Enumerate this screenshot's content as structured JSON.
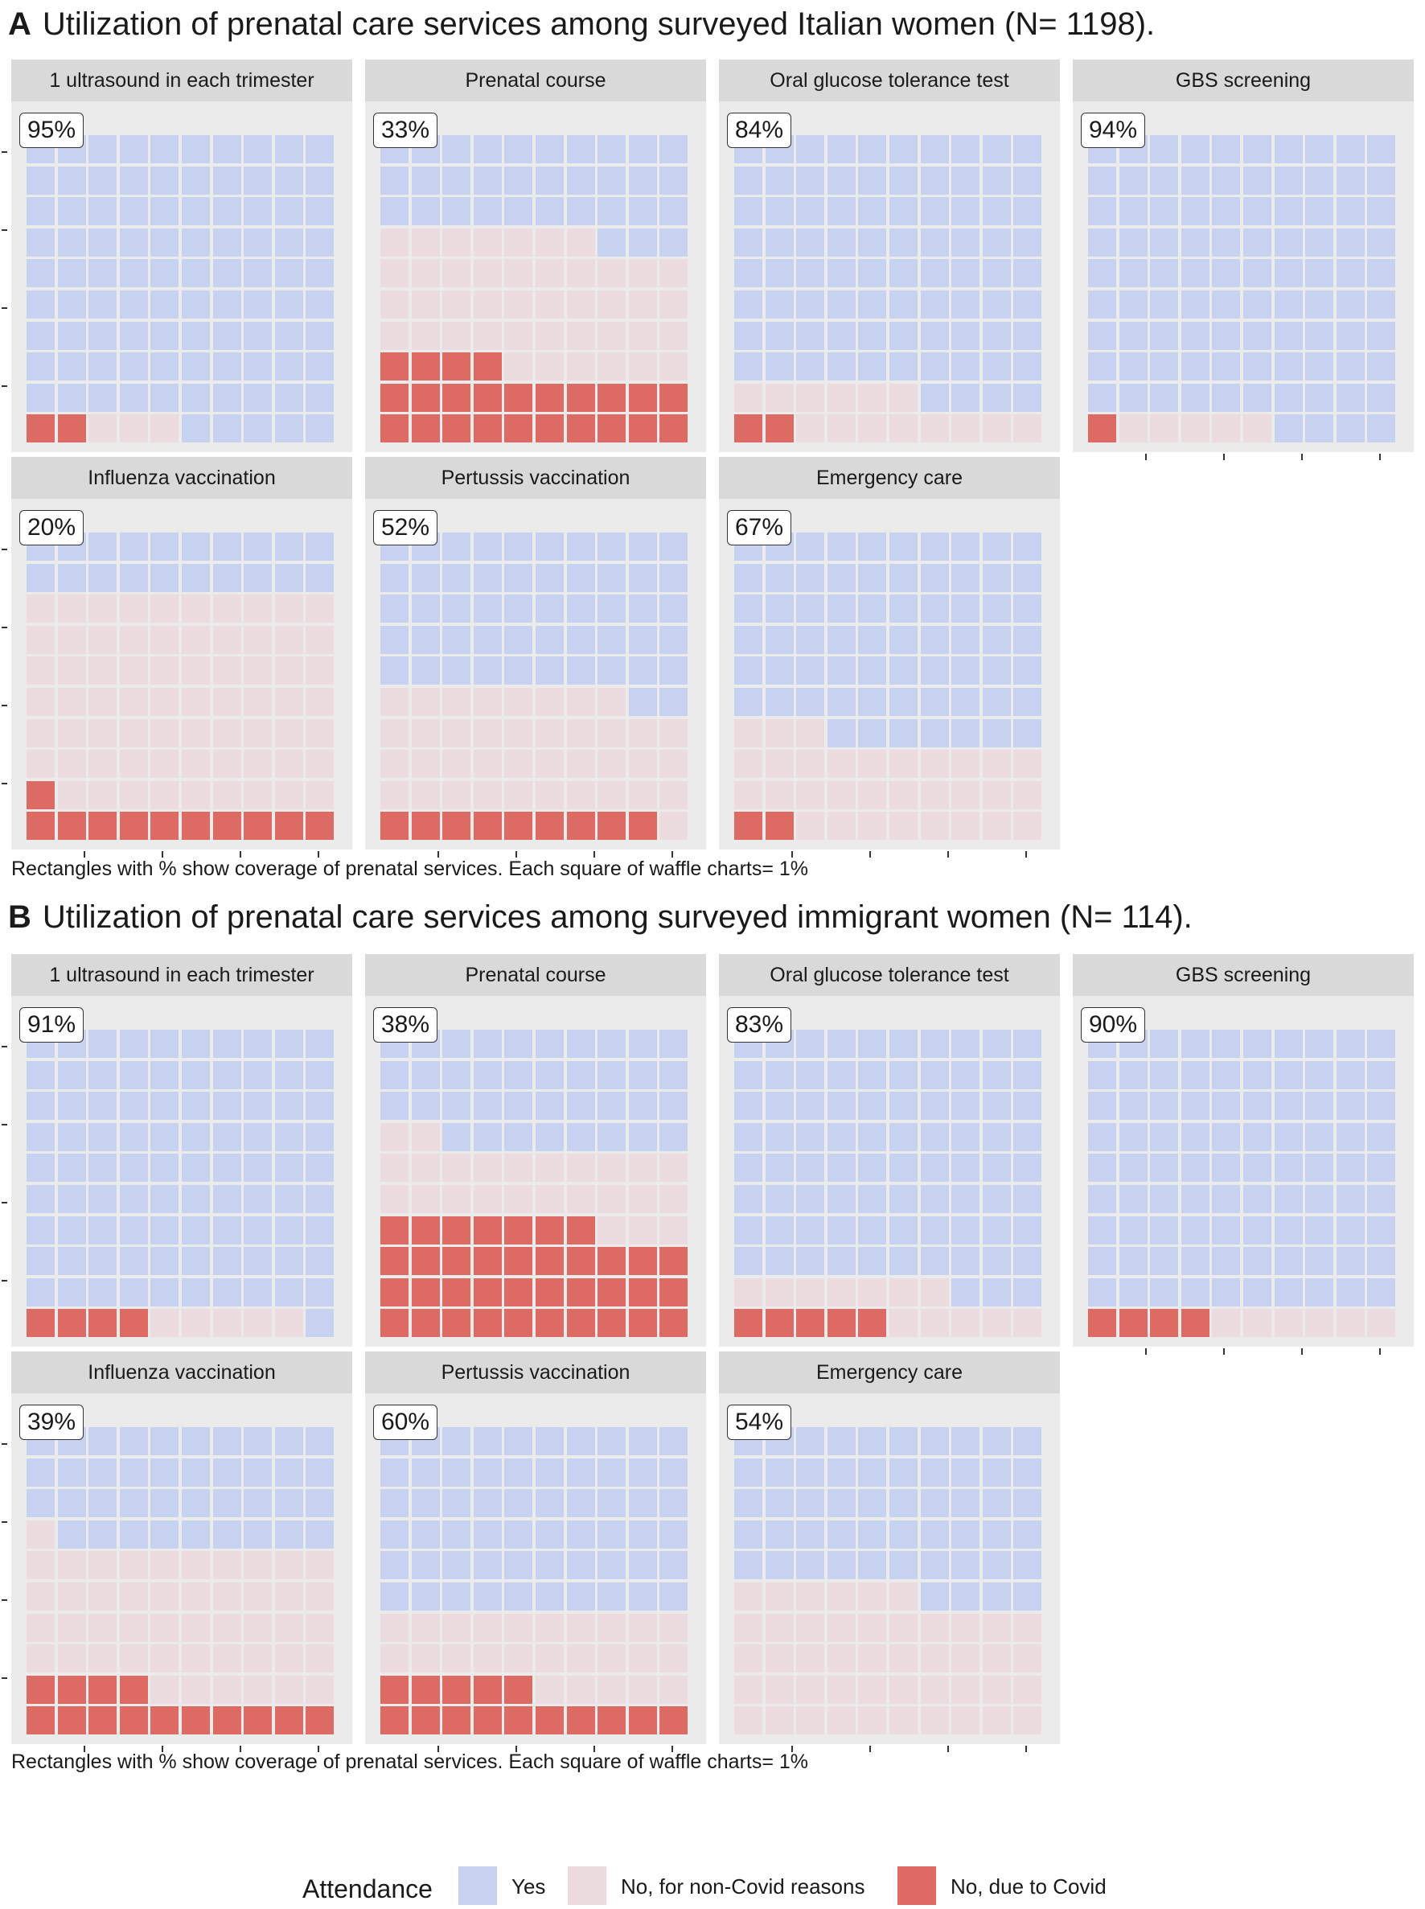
{
  "sections": [
    {
      "letter": "A",
      "title": "Utilization of prenatal care services among surveyed Italian women (N= 1198).",
      "caption": "Rectangles with % show coverage of prenatal services. Each square of waffle charts= 1%"
    },
    {
      "letter": "B",
      "title": "Utilization of prenatal care services among surveyed immigrant women (N= 114).",
      "caption": "Rectangles with % show coverage of prenatal services. Each square of waffle charts= 1%"
    }
  ],
  "legend": {
    "title": "Attendance",
    "items": [
      {
        "label": "Yes",
        "color": "#c7d2f0"
      },
      {
        "label": "No, for non-Covid reasons",
        "color": "#ecdcdf"
      },
      {
        "label": "No, due to Covid",
        "color": "#dd6a63"
      }
    ]
  },
  "chart_data": [
    {
      "type": "waffle",
      "section": "A",
      "title": "1 ultrasound in each trimester",
      "label": "95%",
      "yes": 95,
      "no_non_covid": 3,
      "no_covid": 2
    },
    {
      "type": "waffle",
      "section": "A",
      "title": "Prenatal course",
      "label": "33%",
      "yes": 33,
      "no_non_covid": 43,
      "no_covid": 24
    },
    {
      "type": "waffle",
      "section": "A",
      "title": "Oral glucose tolerance test",
      "label": "84%",
      "yes": 84,
      "no_non_covid": 14,
      "no_covid": 2
    },
    {
      "type": "waffle",
      "section": "A",
      "title": "GBS screening",
      "label": "94%",
      "yes": 94,
      "no_non_covid": 5,
      "no_covid": 1
    },
    {
      "type": "waffle",
      "section": "A",
      "title": "Influenza vaccination",
      "label": "20%",
      "yes": 20,
      "no_non_covid": 69,
      "no_covid": 11
    },
    {
      "type": "waffle",
      "section": "A",
      "title": "Pertussis vaccination",
      "label": "52%",
      "yes": 52,
      "no_non_covid": 39,
      "no_covid": 9
    },
    {
      "type": "waffle",
      "section": "A",
      "title": "Emergency care",
      "label": "67%",
      "yes": 67,
      "no_non_covid": 31,
      "no_covid": 2
    },
    {
      "type": "waffle",
      "section": "B",
      "title": "1 ultrasound in each trimester",
      "label": "91%",
      "yes": 91,
      "no_non_covid": 5,
      "no_covid": 4
    },
    {
      "type": "waffle",
      "section": "B",
      "title": "Prenatal course",
      "label": "38%",
      "yes": 38,
      "no_non_covid": 25,
      "no_covid": 37
    },
    {
      "type": "waffle",
      "section": "B",
      "title": "Oral glucose tolerance test",
      "label": "83%",
      "yes": 83,
      "no_non_covid": 12,
      "no_covid": 5
    },
    {
      "type": "waffle",
      "section": "B",
      "title": "GBS screening",
      "label": "90%",
      "yes": 90,
      "no_non_covid": 6,
      "no_covid": 4
    },
    {
      "type": "waffle",
      "section": "B",
      "title": "Influenza vaccination",
      "label": "39%",
      "yes": 39,
      "no_non_covid": 47,
      "no_covid": 14
    },
    {
      "type": "waffle",
      "section": "B",
      "title": "Pertussis vaccination",
      "label": "60%",
      "yes": 60,
      "no_non_covid": 25,
      "no_covid": 15
    },
    {
      "type": "waffle",
      "section": "B",
      "title": "Emergency care",
      "label": "54%",
      "yes": 54,
      "no_non_covid": 46,
      "no_covid": 0
    }
  ]
}
